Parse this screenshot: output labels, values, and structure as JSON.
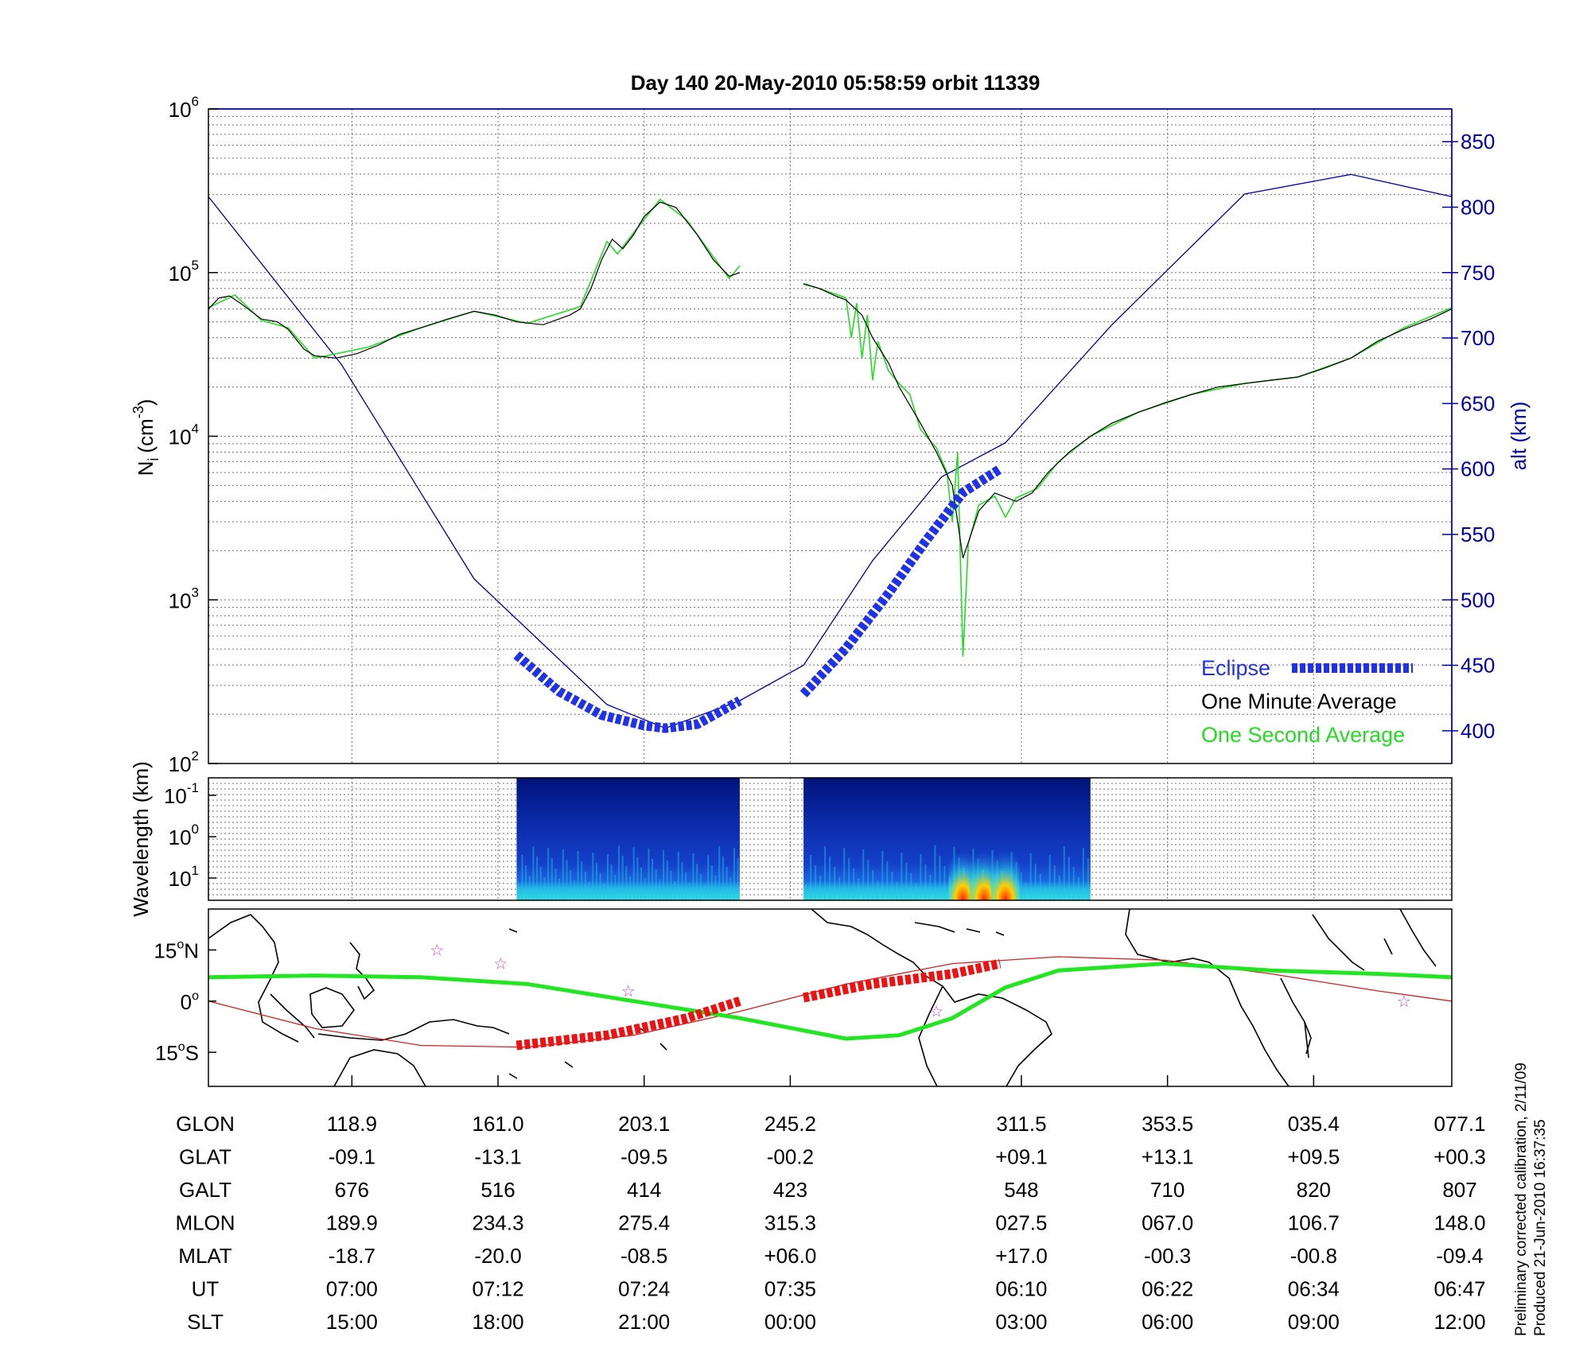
{
  "title": "Day 140  20-May-2010 05:58:59   orbit 11339",
  "side_note": {
    "line1": "Preliminary corrected calibration, 2/11/09",
    "line2": "Produced 21-Jun-2010 16:37:35"
  },
  "colors": {
    "altitude": "#0000aa",
    "eclipse": "#1f32e8",
    "one_minute": "#000000",
    "one_second": "#22dd22",
    "ground_track": "#22e622",
    "eclipse_map": "#ee1111",
    "equator": "#cc2222",
    "stars": "#cc44cc"
  },
  "chart_data": [
    {
      "type": "line",
      "panel": "density",
      "title": "Day 140  20-May-2010 05:58:59   orbit 11339",
      "ylabel": "N",
      "ylabel_sub": "i",
      "ylabel_unit": "(cm",
      "ylabel_unit_sup": "-3",
      "ylabel_close": ")",
      "y_scale": "log",
      "y_tick_mantissa": "10",
      "y_ticks": [
        {
          "exp": "2",
          "value": 100
        },
        {
          "exp": "3",
          "value": 1000
        },
        {
          "exp": "4",
          "value": 10000
        },
        {
          "exp": "5",
          "value": 100000
        },
        {
          "exp": "6",
          "value": 1000000
        }
      ],
      "ylim": [
        100,
        1000000
      ],
      "y2label": "alt (km)",
      "y2_ticks": [
        "400",
        "450",
        "500",
        "550",
        "600",
        "650",
        "700",
        "750",
        "800",
        "850"
      ],
      "y2lim": [
        375,
        875
      ],
      "grid": true,
      "legend_position": "bottom-right",
      "legend": {
        "eclipse": "Eclipse",
        "one_minute": "One Minute Average",
        "one_second": "One Second Average"
      },
      "series": [
        {
          "name": "One Minute Average",
          "segments": [
            [
              [
                0.0,
                60000
              ],
              [
                0.2,
                70000
              ],
              [
                0.4,
                72000
              ],
              [
                0.6,
                65000
              ],
              [
                1.0,
                52000
              ],
              [
                1.3,
                50000
              ],
              [
                1.5,
                45000
              ],
              [
                1.8,
                34000
              ],
              [
                2.0,
                31000
              ],
              [
                2.4,
                30000
              ],
              [
                2.8,
                32000
              ],
              [
                3.2,
                36000
              ],
              [
                3.6,
                42000
              ],
              [
                4.0,
                46000
              ],
              [
                4.5,
                52000
              ],
              [
                5.0,
                58000
              ],
              [
                5.4,
                55000
              ],
              [
                5.8,
                50000
              ],
              [
                6.3,
                48000
              ],
              [
                6.8,
                55000
              ],
              [
                7.0,
                60000
              ],
              [
                7.2,
                80000
              ],
              [
                7.4,
                120000
              ],
              [
                7.6,
                160000
              ],
              [
                7.8,
                140000
              ],
              [
                8.0,
                170000
              ],
              [
                8.2,
                220000
              ],
              [
                8.5,
                270000
              ],
              [
                8.8,
                250000
              ],
              [
                9.2,
                170000
              ],
              [
                9.5,
                120000
              ],
              [
                9.8,
                95000
              ],
              [
                10.0,
                100000
              ]
            ],
            [
              [
                11.2,
                85000
              ],
              [
                11.5,
                80000
              ],
              [
                11.8,
                72000
              ],
              [
                12.0,
                68000
              ],
              [
                12.3,
                55000
              ],
              [
                12.5,
                40000
              ],
              [
                12.8,
                28000
              ],
              [
                13.0,
                20000
              ],
              [
                13.4,
                12000
              ],
              [
                13.7,
                8000
              ],
              [
                14.0,
                5000
              ],
              [
                14.2,
                1800
              ],
              [
                14.35,
                2500
              ],
              [
                14.5,
                3500
              ],
              [
                14.8,
                4500
              ],
              [
                15.2,
                4000
              ],
              [
                15.5,
                4500
              ],
              [
                15.8,
                6000
              ],
              [
                16.2,
                8000
              ],
              [
                16.6,
                10000
              ],
              [
                17.0,
                12000
              ],
              [
                17.5,
                14000
              ],
              [
                18.0,
                16000
              ],
              [
                18.5,
                18000
              ],
              [
                19.0,
                20000
              ],
              [
                19.5,
                21000
              ],
              [
                20.0,
                22000
              ],
              [
                20.5,
                23000
              ],
              [
                21.0,
                26000
              ],
              [
                21.5,
                30000
              ],
              [
                22.0,
                38000
              ],
              [
                22.5,
                45000
              ],
              [
                23.0,
                52000
              ],
              [
                23.4,
                60000
              ]
            ]
          ]
        },
        {
          "name": "One Second Average",
          "segments": [
            [
              [
                0.0,
                61000
              ],
              [
                0.5,
                73000
              ],
              [
                1.0,
                51000
              ],
              [
                1.5,
                46000
              ],
              [
                2.0,
                30000
              ],
              [
                3.0,
                35000
              ],
              [
                4.0,
                46000
              ],
              [
                5.0,
                58000
              ],
              [
                6.0,
                49000
              ],
              [
                7.0,
                62000
              ],
              [
                7.5,
                155000
              ],
              [
                7.7,
                130000
              ],
              [
                8.0,
                175000
              ],
              [
                8.5,
                280000
              ],
              [
                9.0,
                210000
              ],
              [
                9.5,
                125000
              ],
              [
                9.8,
                92000
              ],
              [
                10.0,
                110000
              ]
            ],
            [
              [
                11.2,
                86000
              ],
              [
                11.8,
                74000
              ],
              [
                12.0,
                70000
              ],
              [
                12.1,
                40000
              ],
              [
                12.2,
                65000
              ],
              [
                12.3,
                30000
              ],
              [
                12.4,
                55000
              ],
              [
                12.5,
                22000
              ],
              [
                12.6,
                38000
              ],
              [
                12.8,
                25000
              ],
              [
                13.0,
                21000
              ],
              [
                13.2,
                18000
              ],
              [
                13.4,
                11000
              ],
              [
                13.7,
                8500
              ],
              [
                13.9,
                6000
              ],
              [
                14.0,
                3000
              ],
              [
                14.1,
                8000
              ],
              [
                14.2,
                450
              ],
              [
                14.3,
                2200
              ],
              [
                14.5,
                3800
              ],
              [
                14.8,
                4300
              ],
              [
                15.0,
                3200
              ],
              [
                15.2,
                4200
              ],
              [
                15.6,
                4800
              ],
              [
                16.0,
                7000
              ],
              [
                16.6,
                10000
              ],
              [
                17.5,
                14000
              ],
              [
                18.5,
                18000
              ],
              [
                19.5,
                21000
              ],
              [
                20.5,
                23000
              ],
              [
                21.5,
                30000
              ],
              [
                22.5,
                46000
              ],
              [
                23.4,
                61000
              ]
            ]
          ]
        },
        {
          "name": "alt (km)",
          "axis": "right",
          "points": [
            [
              0.0,
              808
            ],
            [
              2.5,
              680
            ],
            [
              5.0,
              516
            ],
            [
              7.5,
              420
            ],
            [
              8.6,
              402
            ],
            [
              10.0,
              423
            ],
            [
              11.2,
              450
            ],
            [
              12.5,
              530
            ],
            [
              13.8,
              594
            ],
            [
              15.0,
              620
            ],
            [
              17.0,
              710
            ],
            [
              19.5,
              810
            ],
            [
              21.5,
              825
            ],
            [
              23.4,
              808
            ]
          ]
        },
        {
          "name": "Eclipse",
          "segments": [
            [
              [
                5.8,
                458
              ],
              [
                6.6,
                430
              ],
              [
                7.4,
                412
              ],
              [
                8.2,
                404
              ],
              [
                8.6,
                402
              ],
              [
                9.2,
                405
              ],
              [
                10.0,
                423
              ]
            ],
            [
              [
                11.2,
                428
              ],
              [
                12.0,
                463
              ],
              [
                12.8,
                505
              ],
              [
                13.5,
                545
              ],
              [
                14.2,
                582
              ],
              [
                14.9,
                600
              ]
            ]
          ]
        }
      ]
    },
    {
      "type": "heatmap",
      "panel": "spectrogram",
      "ylabel": "Wavelength (km)",
      "y_tick_mantissa": "10",
      "y_ticks": [
        {
          "exp": "-1"
        },
        {
          "exp": "0"
        },
        {
          "exp": "1"
        }
      ],
      "blocks": [
        {
          "x_start": 5.8,
          "x_end": 10.0,
          "hot": []
        },
        {
          "x_start": 11.2,
          "x_end": 16.6,
          "hot": [
            14.2,
            14.6,
            15.0
          ]
        }
      ]
    },
    {
      "type": "line",
      "panel": "map",
      "y_ticks": [
        {
          "label": "15",
          "hemisphere": "N",
          "value": 15
        },
        {
          "label": "0",
          "hemisphere": "",
          "value": 0
        },
        {
          "label": "15",
          "hemisphere": "S",
          "value": -15
        }
      ],
      "ylim": [
        -25,
        27
      ],
      "series": [
        {
          "name": "ground_track",
          "points": [
            [
              0.0,
              7
            ],
            [
              2.0,
              7.5
            ],
            [
              4.0,
              7
            ],
            [
              6.0,
              5
            ],
            [
              8.0,
              0
            ],
            [
              10.0,
              -5
            ],
            [
              11.0,
              -8
            ],
            [
              12.0,
              -11
            ],
            [
              13.0,
              -10
            ],
            [
              14.0,
              -5
            ],
            [
              15.0,
              4
            ],
            [
              16.0,
              9
            ],
            [
              18.0,
              11
            ],
            [
              20.0,
              9
            ],
            [
              22.0,
              8
            ],
            [
              23.4,
              7
            ]
          ]
        },
        {
          "name": "eclipse_map",
          "segments": [
            [
              [
                5.8,
                -13
              ],
              [
                7.5,
                -10
              ],
              [
                9.0,
                -5
              ],
              [
                10.0,
                0
              ]
            ],
            [
              [
                11.2,
                1
              ],
              [
                12.5,
                5
              ],
              [
                14.0,
                8
              ],
              [
                14.9,
                11
              ]
            ]
          ]
        },
        {
          "name": "equator",
          "points": [
            [
              0.0,
              0
            ],
            [
              2.0,
              -8
            ],
            [
              4.0,
              -13
            ],
            [
              6.0,
              -13.5
            ],
            [
              8.0,
              -10
            ],
            [
              10.0,
              -3
            ],
            [
              12.0,
              5
            ],
            [
              14.0,
              11
            ],
            [
              16.0,
              13
            ],
            [
              18.0,
              12
            ],
            [
              20.0,
              8
            ],
            [
              22.0,
              3
            ],
            [
              23.4,
              0
            ]
          ]
        },
        {
          "name": "stars",
          "points": [
            [
              4.3,
              15
            ],
            [
              5.5,
              11
            ],
            [
              7.9,
              3
            ],
            [
              13.7,
              -3
            ],
            [
              22.5,
              0
            ]
          ]
        }
      ]
    }
  ],
  "table": {
    "row_labels": [
      "GLON",
      "GLAT",
      "GALT",
      "MLON",
      "MLAT",
      "UT",
      "SLT"
    ],
    "columns": [
      {
        "x": 2.7,
        "values": [
          "118.9",
          "-09.1",
          "676",
          "189.9",
          "-18.7",
          "07:00",
          "15:00"
        ]
      },
      {
        "x": 5.45,
        "values": [
          "161.0",
          "-13.1",
          "516",
          "234.3",
          "-20.0",
          "07:12",
          "18:00"
        ]
      },
      {
        "x": 8.2,
        "values": [
          "203.1",
          "-09.5",
          "414",
          "275.4",
          "-08.5",
          "07:24",
          "21:00"
        ]
      },
      {
        "x": 10.95,
        "values": [
          "245.2",
          "-00.2",
          "423",
          "315.3",
          "+06.0",
          "07:35",
          "00:00"
        ]
      },
      {
        "x": 15.3,
        "values": [
          "311.5",
          "+09.1",
          "548",
          "027.5",
          "+17.0",
          "06:10",
          "03:00"
        ]
      },
      {
        "x": 18.05,
        "values": [
          "353.5",
          "+13.1",
          "710",
          "067.0",
          "-00.3",
          "06:22",
          "06:00"
        ]
      },
      {
        "x": 20.8,
        "values": [
          "035.4",
          "+09.5",
          "820",
          "106.7",
          "-00.8",
          "06:34",
          "09:00"
        ]
      },
      {
        "x": 23.55,
        "values": [
          "077.1",
          "+00.3",
          "807",
          "148.0",
          "-09.4",
          "06:47",
          "12:00"
        ]
      }
    ]
  }
}
